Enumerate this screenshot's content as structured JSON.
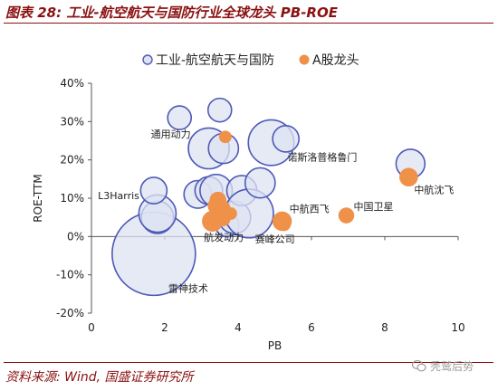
{
  "header": {
    "title": "图表 28:  工业-航空航天与国防行业全球龙头 PB-ROE"
  },
  "footer": {
    "source": "资料来源: Wind, 国盛证券研究所"
  },
  "watermark": {
    "text": "秃鹫后势",
    "icon": "wechat-icon"
  },
  "chart_data": {
    "type": "scatter",
    "xlabel": "PB",
    "ylabel": "ROE-TTM",
    "xlim": [
      0,
      10
    ],
    "ylim": [
      -20,
      40
    ],
    "xticks": [
      0,
      2,
      4,
      6,
      8,
      10
    ],
    "yticks": [
      -20,
      -10,
      0,
      10,
      20,
      30,
      40
    ],
    "xtick_labels": [
      "0",
      "2",
      "4",
      "6",
      "8",
      "10"
    ],
    "ytick_labels": [
      "-20%",
      "-10%",
      "0%",
      "10%",
      "20%",
      "30%",
      "40%"
    ],
    "legend_position": "top",
    "series": [
      {
        "name": "工业-航空航天与国防",
        "color_fill": "#dde3f1",
        "color_edge": "#4e59b8",
        "points": [
          {
            "x": 1.7,
            "y": -4.5,
            "size": 100,
            "label": "雷神技术"
          },
          {
            "x": 1.8,
            "y": 5,
            "size": 15,
            "label": "L3Harris"
          },
          {
            "x": 1.8,
            "y": 6,
            "size": 20
          },
          {
            "x": 1.7,
            "y": 12,
            "size": 10
          },
          {
            "x": 2.4,
            "y": 31,
            "size": 8
          },
          {
            "x": 2.9,
            "y": 11,
            "size": 11
          },
          {
            "x": 3.2,
            "y": 12,
            "size": 11
          },
          {
            "x": 3.2,
            "y": 23,
            "size": 24,
            "label": "通用动力"
          },
          {
            "x": 3.5,
            "y": 33,
            "size": 8
          },
          {
            "x": 3.6,
            "y": 23,
            "size": 13
          },
          {
            "x": 3.7,
            "y": 3,
            "size": 8
          },
          {
            "x": 3.4,
            "y": 12,
            "size": 15
          },
          {
            "x": 3.9,
            "y": 5,
            "size": 15
          },
          {
            "x": 4.1,
            "y": 12,
            "size": 13
          },
          {
            "x": 4.3,
            "y": 6,
            "size": 34,
            "label": "航发动力"
          },
          {
            "x": 4.6,
            "y": 14,
            "size": 13
          },
          {
            "x": 4.9,
            "y": 24.5,
            "size": 30,
            "label": "诺斯洛普格鲁门"
          },
          {
            "x": 5.3,
            "y": 25.5,
            "size": 10
          },
          {
            "x": 8.7,
            "y": 19,
            "size": 12
          }
        ]
      },
      {
        "name": "A股龙头",
        "color_fill": "#f0914a",
        "color_edge": "#f0914a",
        "points": [
          {
            "x": 3.3,
            "y": 4,
            "size": 14
          },
          {
            "x": 3.4,
            "y": 8,
            "size": 9
          },
          {
            "x": 3.45,
            "y": 9.5,
            "size": 9
          },
          {
            "x": 3.6,
            "y": 7.5,
            "size": 6
          },
          {
            "x": 3.6,
            "y": 4.5,
            "size": 6
          },
          {
            "x": 3.65,
            "y": 26,
            "size": 5
          },
          {
            "x": 3.8,
            "y": 6,
            "size": 5
          },
          {
            "x": 5.2,
            "y": 4,
            "size": 12,
            "label": "中航西飞"
          },
          {
            "x": 5.25,
            "y": 3.2,
            "size": 6,
            "label": "赛峰公司"
          },
          {
            "x": 6.95,
            "y": 5.5,
            "size": 8,
            "label": "中国卫星"
          },
          {
            "x": 8.65,
            "y": 15.5,
            "size": 11,
            "label": "中航沈飞"
          }
        ]
      }
    ]
  }
}
